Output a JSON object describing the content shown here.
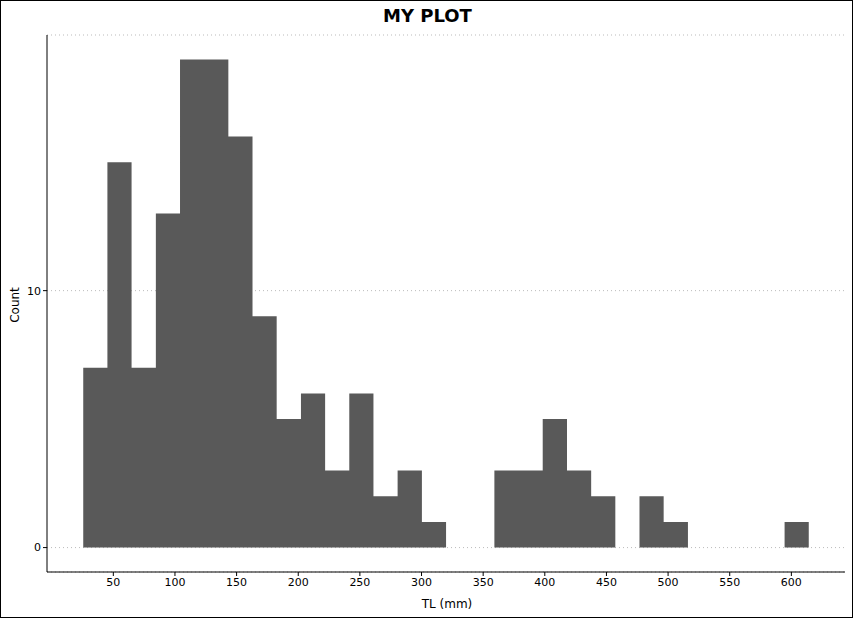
{
  "chart_data": {
    "type": "histogram",
    "title": "MY PLOT",
    "x_label": "TL (mm)",
    "y_label": "Count",
    "bins": [
      25.6,
      45.2,
      64.8,
      84.5,
      104.1,
      123.7,
      143.3,
      162.9,
      182.5,
      202.2,
      221.8,
      241.4,
      261.0,
      280.6,
      300.3,
      319.9,
      339.5,
      359.1,
      378.7,
      398.3,
      418.0,
      437.6,
      457.2,
      476.8,
      496.4,
      516.1,
      535.7,
      555.3,
      574.9,
      594.5,
      614.1
    ],
    "counts": [
      7,
      15,
      7,
      13,
      19,
      19,
      16,
      9,
      5,
      6,
      3,
      6,
      2,
      3,
      1,
      0,
      0,
      3,
      3,
      5,
      3,
      2,
      0,
      2,
      1,
      0,
      0,
      0,
      0,
      1
    ],
    "color": "#595959",
    "xlim": [
      -3.8,
      643.5
    ],
    "ylim": [
      -0.95,
      19.95
    ],
    "xticks": [
      50,
      100,
      150,
      200,
      250,
      300,
      350,
      400,
      450,
      500,
      550,
      600
    ],
    "yticks": [
      0,
      10
    ],
    "grid": true
  }
}
